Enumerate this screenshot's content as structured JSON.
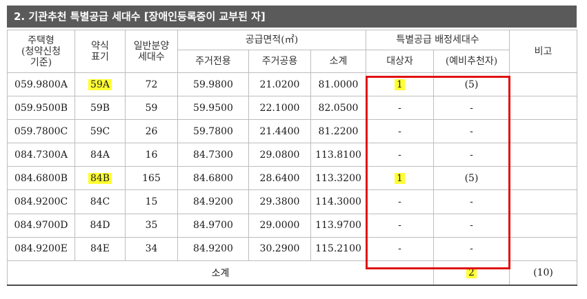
{
  "title": "2. 기관추천 특별공급 세대수 [장애인등록증이 교부된 자]",
  "headers": {
    "housing_type": [
      "주택형",
      "(청약신청",
      "기준)"
    ],
    "abbrev": [
      "약식",
      "표기"
    ],
    "general_units": [
      "일반분양",
      "세대수"
    ],
    "area_group": "공급면적(㎡)",
    "area_private": "주거전용",
    "area_common": "주거공용",
    "area_subtotal": "소계",
    "special_group": "특별공급 배정세대수",
    "special_target": "대상자",
    "special_reserve": "(예비추천자)",
    "remarks": "비고"
  },
  "rows": [
    {
      "type": "059.9800A",
      "abbr": "59A",
      "units": "72",
      "private": "59.9800",
      "common": "21.0200",
      "total": "81.0000",
      "target": "1",
      "reserve": "(5)",
      "highlight": true
    },
    {
      "type": "059.9500B",
      "abbr": "59B",
      "units": "59",
      "private": "59.9500",
      "common": "22.1000",
      "total": "82.0500",
      "target": "-",
      "reserve": "-",
      "highlight": false
    },
    {
      "type": "059.7800C",
      "abbr": "59C",
      "units": "26",
      "private": "59.7800",
      "common": "21.4400",
      "total": "81.2200",
      "target": "-",
      "reserve": "-",
      "highlight": false
    },
    {
      "type": "084.7300A",
      "abbr": "84A",
      "units": "16",
      "private": "84.7300",
      "common": "29.0800",
      "total": "113.8100",
      "target": "-",
      "reserve": "-",
      "highlight": false
    },
    {
      "type": "084.6800B",
      "abbr": "84B",
      "units": "165",
      "private": "84.6800",
      "common": "28.6400",
      "total": "113.3200",
      "target": "1",
      "reserve": "(5)",
      "highlight": true
    },
    {
      "type": "084.9200C",
      "abbr": "84C",
      "units": "15",
      "private": "84.9200",
      "common": "29.3800",
      "total": "114.3000",
      "target": "-",
      "reserve": "-",
      "highlight": false
    },
    {
      "type": "084.9700D",
      "abbr": "84D",
      "units": "35",
      "private": "84.9700",
      "common": "29.0000",
      "total": "113.9700",
      "target": "-",
      "reserve": "-",
      "highlight": false
    },
    {
      "type": "084.9200E",
      "abbr": "84E",
      "units": "34",
      "private": "84.9200",
      "common": "30.2900",
      "total": "115.2100",
      "target": "-",
      "reserve": "-",
      "highlight": false
    }
  ],
  "total_row": {
    "label": "소계",
    "target": "2",
    "reserve": "(10)"
  },
  "colors": {
    "title_bg": "#5a5a5a",
    "highlight": "#ffff33",
    "red_box": "#e01010"
  }
}
